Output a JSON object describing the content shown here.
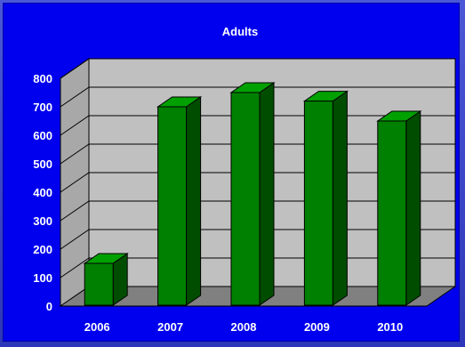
{
  "chart_data": {
    "type": "bar",
    "title": "Adults",
    "xlabel": "",
    "ylabel": "",
    "categories": [
      "2006",
      "2007",
      "2008",
      "2009",
      "2010"
    ],
    "values": [
      150,
      700,
      750,
      720,
      650
    ],
    "ylim": [
      0,
      800
    ],
    "yticks": [
      "0",
      "100",
      "200",
      "300",
      "400",
      "500",
      "600",
      "700",
      "800"
    ],
    "grid": true,
    "legend": "none",
    "style": "3d",
    "colors": {
      "background": "#0000ee",
      "plot_wall": "#c0c0c0",
      "floor": "#808080",
      "bar_front": "#008000",
      "bar_top": "#00a000",
      "bar_side": "#004d00",
      "text": "#ffffff"
    }
  }
}
